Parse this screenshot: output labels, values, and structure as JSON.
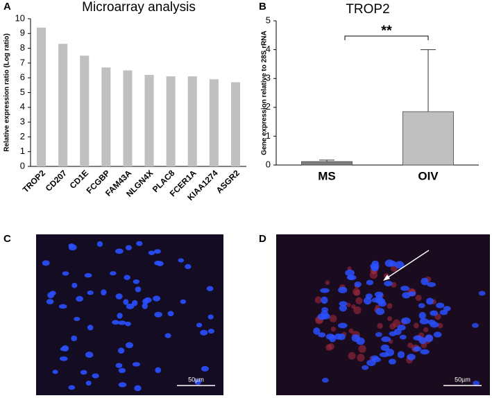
{
  "chart_data": [
    {
      "type": "bar",
      "panel": "A",
      "title": "Microarray analysis",
      "ylabel": "Relative expression ratio (Log ratio)",
      "categories": [
        "TROP2",
        "CD207",
        "CD1E",
        "FCGBP",
        "FAM43A",
        "NLGN4X",
        "PLAC8",
        "FCER1A",
        "KIAA1274",
        "ASGR2"
      ],
      "values": [
        9.4,
        8.3,
        7.5,
        6.7,
        6.5,
        6.2,
        6.1,
        6.1,
        5.9,
        5.7
      ],
      "color": "#c0c0c0",
      "ylim": [
        0,
        10
      ],
      "yticks": [
        0,
        1,
        2,
        3,
        4,
        5,
        6,
        7,
        8,
        9,
        10
      ]
    },
    {
      "type": "bar",
      "panel": "B",
      "title": "TROP2",
      "ylabel": "Gene expression relative to 28S rRNA",
      "categories": [
        "MS",
        "OIV"
      ],
      "values": [
        0.12,
        1.85
      ],
      "errors": [
        0.05,
        2.15
      ],
      "colors": [
        "#7f7f7f",
        "#c0c0c0"
      ],
      "significance": "**",
      "ylim": [
        0,
        5
      ],
      "yticks": [
        0,
        1,
        2,
        3,
        4,
        5
      ]
    }
  ],
  "images": [
    {
      "panel": "C",
      "scale_bar": "50µm"
    },
    {
      "panel": "D",
      "scale_bar": "50µm"
    }
  ]
}
